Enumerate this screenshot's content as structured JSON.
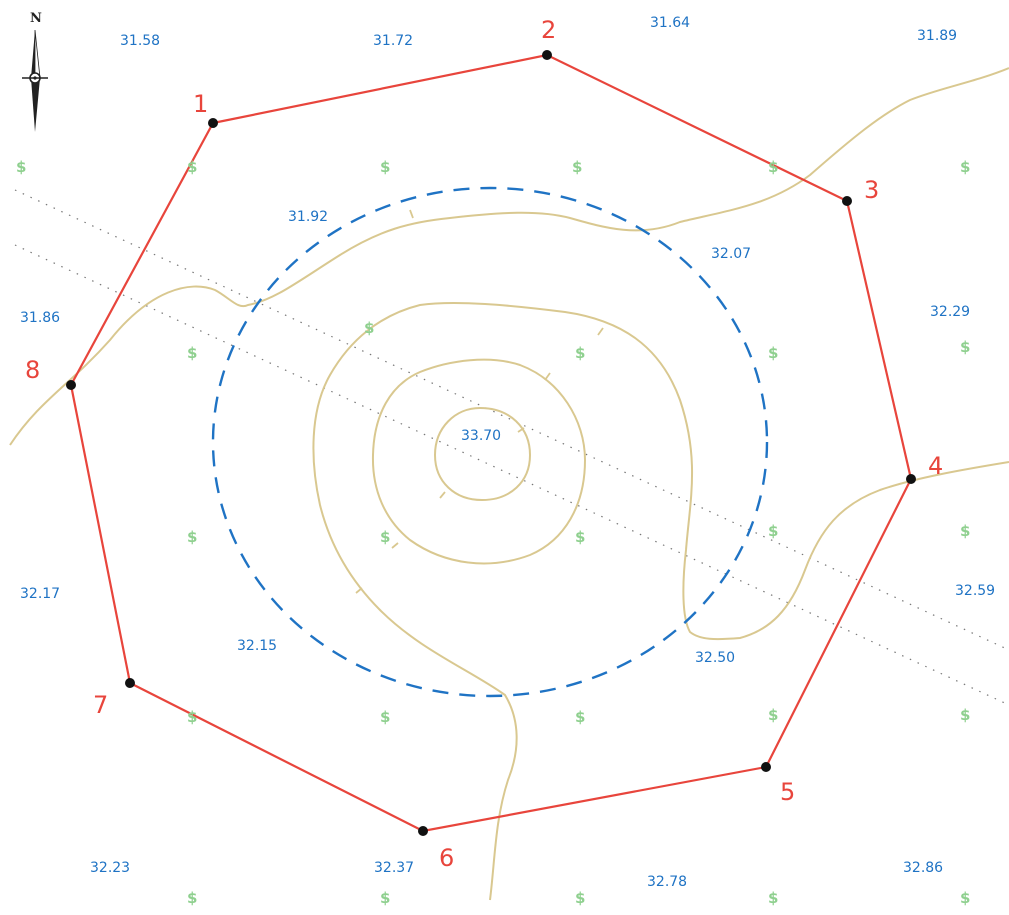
{
  "north_label": "N",
  "vegetation_symbol": "$",
  "boundary_vertices": [
    "1",
    "2",
    "3",
    "4",
    "5",
    "6",
    "7",
    "8"
  ],
  "spot_heights": [
    "31.58",
    "31.72",
    "31.64",
    "31.89",
    "31.86",
    "32.29",
    "32.59",
    "32.17",
    "32.23",
    "32.37",
    "32.78",
    "32.86"
  ],
  "dashed_contour_labels": [
    "31.92",
    "32.07",
    "32.15",
    "32.50"
  ],
  "summit_elevation": "33.70",
  "colors": {
    "boundary": "#e8453c",
    "contour_dashed": "#1f73c4",
    "contour_lines": "#d9c890",
    "elevation_text": "#1f73c4",
    "vegetation": "#8fd08f",
    "vertex_point": "#111111"
  },
  "icons": [
    "north-arrow-icon",
    "vegetation-symbol-icon"
  ]
}
